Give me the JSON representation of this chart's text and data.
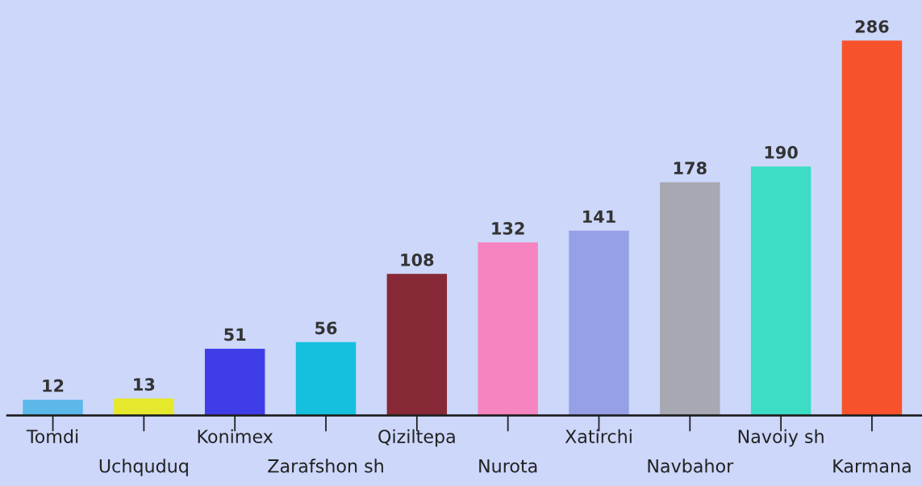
{
  "chart_data": {
    "type": "bar",
    "categories": [
      "Tomdi",
      "Uchquduq",
      "Konimex",
      "Zarafshon sh",
      "Qiziltepa",
      "Nurota",
      "Xatirchi",
      "Navbahor",
      "Navoiy sh",
      "Karmana"
    ],
    "values": [
      12,
      13,
      51,
      56,
      108,
      132,
      141,
      178,
      190,
      286
    ],
    "colors": [
      "#5bb8e8",
      "#e6e82c",
      "#3f3de8",
      "#14c0de",
      "#862835",
      "#f584c0",
      "#95a0e6",
      "#a8a8b2",
      "#3ddcc4",
      "#f7522c"
    ],
    "data_labels": true,
    "grid": false,
    "legend": false
  }
}
